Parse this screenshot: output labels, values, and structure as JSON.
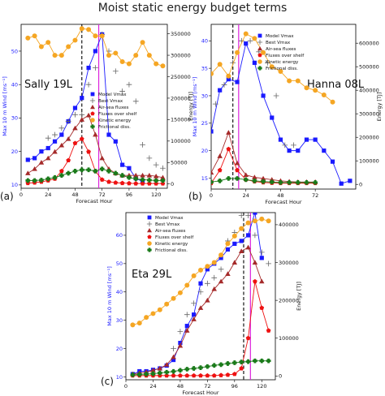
{
  "title": "Moist static energy budget terms",
  "colors": {
    "model_vmax": "#1a1aff",
    "best_vmax": "#666666",
    "air_sea": "#a52a2a",
    "shelf": "#ee1111",
    "kinetic": "#f5a623",
    "frictional": "#1a7a1a",
    "vline_black": "#000000",
    "vline_magenta": "#dd22dd"
  },
  "chart_data": [
    {
      "type": "line",
      "panel_label": "(a)",
      "storm_label": "Sally 19L",
      "xlabel": "Forecast Hour",
      "ylabel": "Max 10 m Wind [ms⁻¹]",
      "ylabel_right": "Energy [TJ]",
      "xlim": [
        0,
        130
      ],
      "ylim": [
        9,
        58
      ],
      "ylim_right": [
        -10000,
        372000
      ],
      "xticks": [
        0,
        24,
        48,
        72,
        96,
        120
      ],
      "yticks": [
        10,
        20,
        30,
        40,
        50
      ],
      "yticks_right": [
        0,
        50000,
        100000,
        150000,
        200000,
        250000,
        300000,
        350000
      ],
      "yticks_right_labels": [
        "0",
        "50000",
        "100000",
        "150000",
        "200000",
        "250000",
        "300000",
        "350000"
      ],
      "vlines": {
        "black": 54,
        "magenta": 69
      },
      "legend": true,
      "series": [
        {
          "name": "Model Vmax",
          "axis": "left",
          "marker": "square",
          "line": true,
          "x": [
            6,
            12,
            18,
            24,
            30,
            36,
            42,
            48,
            54,
            60,
            66,
            72,
            78,
            84,
            90,
            96,
            102,
            108
          ],
          "y": [
            17.5,
            18,
            20,
            21,
            23,
            25,
            29,
            33,
            36,
            45,
            50,
            55,
            25,
            23,
            16,
            15,
            12,
            11
          ]
        },
        {
          "name": "Best Vmax",
          "axis": "left",
          "marker": "plus",
          "line": false,
          "x": [
            24,
            30,
            36,
            42,
            48,
            54,
            60,
            66,
            72,
            78,
            84,
            90,
            96,
            102,
            108,
            114,
            120,
            126
          ],
          "y": [
            24,
            25,
            27,
            29,
            31,
            31,
            40,
            45,
            55,
            50,
            44,
            38,
            40,
            35,
            22,
            18,
            16,
            15
          ]
        },
        {
          "name": "Air-sea fluxes",
          "axis": "right",
          "marker": "triangle",
          "line": true,
          "x": [
            6,
            12,
            18,
            24,
            30,
            36,
            42,
            48,
            54,
            60,
            66,
            72,
            78,
            84,
            90,
            96,
            102,
            108,
            114,
            120,
            126
          ],
          "y": [
            25000,
            35000,
            50000,
            60000,
            75000,
            90000,
            105000,
            130000,
            150000,
            160000,
            115000,
            60000,
            35000,
            25000,
            20000,
            20000,
            20000,
            20000,
            20000,
            18000,
            15000
          ]
        },
        {
          "name": "Fluxes over shelf",
          "axis": "right",
          "marker": "pentagon",
          "line": true,
          "x": [
            6,
            12,
            18,
            24,
            30,
            36,
            42,
            48,
            54,
            60,
            66,
            72,
            78,
            84,
            90,
            96,
            102,
            108,
            114,
            120,
            126
          ],
          "y": [
            2000,
            3000,
            5000,
            8000,
            12000,
            30000,
            55000,
            95000,
            105000,
            75000,
            30000,
            10000,
            5000,
            3000,
            2000,
            1500,
            1000,
            1000,
            1000,
            1000,
            1000
          ]
        },
        {
          "name": "Kinetic energy",
          "axis": "right",
          "marker": "circle",
          "line": true,
          "x": [
            6,
            12,
            18,
            24,
            30,
            36,
            42,
            48,
            54,
            60,
            66,
            72,
            78,
            84,
            90,
            96,
            102,
            108,
            114,
            120,
            126
          ],
          "y": [
            340000,
            345000,
            320000,
            330000,
            300000,
            300000,
            320000,
            335000,
            362000,
            360000,
            345000,
            345000,
            300000,
            305000,
            285000,
            280000,
            300000,
            330000,
            300000,
            280000,
            275000
          ]
        },
        {
          "name": "Frictional diss.",
          "axis": "right",
          "marker": "cross",
          "line": true,
          "x": [
            6,
            12,
            18,
            24,
            30,
            36,
            42,
            48,
            54,
            60,
            66,
            72,
            78,
            84,
            90,
            96,
            102,
            108,
            114,
            120,
            126
          ],
          "y": [
            8000,
            8000,
            9000,
            12000,
            15000,
            20000,
            25000,
            30000,
            33000,
            33000,
            30000,
            35000,
            30000,
            25000,
            20000,
            15000,
            12000,
            10000,
            9000,
            8000,
            8000
          ]
        }
      ]
    },
    {
      "type": "line",
      "panel_label": "(b)",
      "storm_label": "Hanna 08L",
      "xlabel": "Forecast Hour",
      "ylabel": "Max 10 m Wind [ms⁻¹]",
      "ylabel_right": "Energy [TJ]",
      "xlim": [
        0,
        100
      ],
      "ylim": [
        13,
        43
      ],
      "ylim_right": [
        -20000,
        680000
      ],
      "xticks": [
        0,
        24,
        48,
        72
      ],
      "yticks": [
        15,
        20,
        25,
        30,
        35,
        40
      ],
      "yticks_right": [
        0,
        100000,
        200000,
        300000,
        400000,
        500000,
        600000
      ],
      "yticks_right_labels": [
        "0",
        "100000",
        "200000",
        "300000",
        "400000",
        "500000",
        "600000"
      ],
      "vlines": {
        "black": 15,
        "magenta": 19
      },
      "legend": true,
      "series": [
        {
          "name": "Model Vmax",
          "axis": "left",
          "marker": "square",
          "line": true,
          "x": [
            0,
            6,
            12,
            18,
            24,
            30,
            36,
            42,
            48,
            54,
            60,
            66,
            72,
            78,
            84,
            90,
            96
          ],
          "y": [
            23.5,
            31,
            33,
            32.5,
            39.5,
            36,
            30,
            26,
            22,
            20,
            20,
            22,
            22,
            20,
            18,
            14,
            14.5
          ]
        },
        {
          "name": "Best Vmax",
          "axis": "left",
          "marker": "plus",
          "line": false,
          "x": [
            3,
            9,
            15,
            21,
            27,
            33,
            39,
            45,
            51,
            57
          ],
          "y": [
            28.5,
            32,
            36,
            40,
            40,
            38,
            36,
            30,
            21,
            21
          ]
        },
        {
          "name": "Air-sea fluxes",
          "axis": "right",
          "marker": "triangle",
          "line": true,
          "x": [
            0,
            6,
            12,
            18,
            24,
            30,
            36,
            42,
            48,
            54,
            60,
            66,
            72
          ],
          "y": [
            50000,
            120000,
            220000,
            90000,
            40000,
            30000,
            25000,
            20000,
            15000,
            12000,
            10000,
            10000,
            10000
          ]
        },
        {
          "name": "Fluxes over shelf",
          "axis": "right",
          "marker": "pentagon",
          "line": true,
          "x": [
            0,
            6,
            12,
            18,
            24,
            30,
            36,
            42,
            48,
            54,
            60,
            66,
            72
          ],
          "y": [
            5000,
            60000,
            150000,
            60000,
            20000,
            12000,
            8000,
            6000,
            5000,
            5000,
            5000,
            5000,
            5000
          ]
        },
        {
          "name": "Kinetic energy",
          "axis": "right",
          "marker": "circle",
          "line": true,
          "x": [
            0,
            6,
            12,
            18,
            24,
            30,
            36,
            42,
            48,
            54,
            60,
            66,
            72,
            78,
            84
          ],
          "y": [
            470000,
            510000,
            460000,
            560000,
            640000,
            620000,
            560000,
            500000,
            480000,
            440000,
            440000,
            410000,
            400000,
            380000,
            350000
          ]
        },
        {
          "name": "Frictional diss.",
          "axis": "right",
          "marker": "cross",
          "line": true,
          "x": [
            0,
            6,
            12,
            18,
            24,
            30,
            36,
            42,
            48,
            54,
            60,
            66,
            72
          ],
          "y": [
            10000,
            15000,
            25000,
            25000,
            20000,
            15000,
            12000,
            10000,
            8000,
            8000,
            8000,
            8000,
            8000
          ]
        }
      ]
    },
    {
      "type": "line",
      "panel_label": "(c)",
      "storm_label": "Eta 29L",
      "xlabel": "Forecast Hour",
      "ylabel": "Max 10 m Wind [ms⁻¹]",
      "ylabel_right": "Energy [TJ]",
      "xlim": [
        0,
        132
      ],
      "ylim": [
        9,
        68
      ],
      "ylim_right": [
        -10000,
        432000
      ],
      "xticks": [
        0,
        24,
        48,
        72,
        96,
        120
      ],
      "yticks": [
        10,
        20,
        30,
        40,
        50,
        60
      ],
      "yticks_right": [
        0,
        100000,
        200000,
        300000,
        400000
      ],
      "yticks_right_labels": [
        "0",
        "100000",
        "200000",
        "300000",
        "400000"
      ],
      "vlines": {
        "black": 104,
        "magenta": 110
      },
      "legend": true,
      "series": [
        {
          "name": "Model Vmax",
          "axis": "left",
          "marker": "square",
          "line": true,
          "x": [
            6,
            12,
            18,
            24,
            30,
            36,
            42,
            48,
            54,
            60,
            66,
            72,
            78,
            84,
            90,
            96,
            102,
            108,
            114,
            120
          ],
          "y": [
            11,
            12,
            12,
            12.5,
            13,
            14,
            16,
            22,
            28,
            32,
            43,
            48,
            50,
            52,
            55,
            57,
            58,
            60,
            68,
            52
          ]
        },
        {
          "name": "Best Vmax",
          "axis": "left",
          "marker": "plus",
          "line": false,
          "x": [
            42,
            48,
            54,
            60,
            66,
            72,
            78,
            84,
            90,
            96,
            102,
            108,
            114,
            120,
            126
          ],
          "y": [
            20,
            26,
            32,
            36,
            40,
            43,
            45,
            48,
            58,
            61,
            67,
            67,
            60,
            54,
            50
          ]
        },
        {
          "name": "Air-sea fluxes",
          "axis": "right",
          "marker": "triangle",
          "line": true,
          "x": [
            6,
            12,
            18,
            24,
            30,
            36,
            42,
            48,
            54,
            60,
            66,
            72,
            78,
            84,
            90,
            96,
            102,
            108,
            114,
            120
          ],
          "y": [
            5000,
            8000,
            10000,
            15000,
            20000,
            30000,
            50000,
            80000,
            120000,
            150000,
            180000,
            200000,
            230000,
            250000,
            270000,
            300000,
            330000,
            340000,
            300000,
            250000
          ]
        },
        {
          "name": "Fluxes over shelf",
          "axis": "right",
          "marker": "pentagon",
          "line": true,
          "x": [
            6,
            12,
            18,
            24,
            30,
            36,
            42,
            48,
            54,
            60,
            66,
            72,
            78,
            84,
            90,
            96,
            102,
            108,
            114,
            120,
            126
          ],
          "y": [
            1000,
            1000,
            1000,
            1000,
            1000,
            1000,
            1000,
            1000,
            1000,
            1000,
            1000,
            1000,
            1000,
            2000,
            3000,
            5000,
            20000,
            100000,
            250000,
            180000,
            120000
          ]
        },
        {
          "name": "Kinetic energy",
          "axis": "right",
          "marker": "circle",
          "line": true,
          "x": [
            6,
            12,
            18,
            24,
            30,
            36,
            42,
            48,
            54,
            60,
            66,
            72,
            78,
            84,
            90,
            96,
            102,
            108,
            114,
            120,
            126
          ],
          "y": [
            135000,
            140000,
            155000,
            165000,
            175000,
            190000,
            205000,
            220000,
            240000,
            265000,
            280000,
            290000,
            300000,
            320000,
            350000,
            370000,
            390000,
            405000,
            410000,
            415000,
            410000
          ]
        },
        {
          "name": "Frictional diss.",
          "axis": "right",
          "marker": "cross",
          "line": true,
          "x": [
            6,
            12,
            18,
            24,
            30,
            36,
            42,
            48,
            54,
            60,
            66,
            72,
            78,
            84,
            90,
            96,
            102,
            108,
            114,
            120,
            126
          ],
          "y": [
            3000,
            4000,
            5000,
            6000,
            8000,
            10000,
            12000,
            15000,
            18000,
            20000,
            22000,
            25000,
            28000,
            30000,
            33000,
            35000,
            37000,
            38000,
            40000,
            40000,
            40000
          ]
        }
      ]
    }
  ]
}
